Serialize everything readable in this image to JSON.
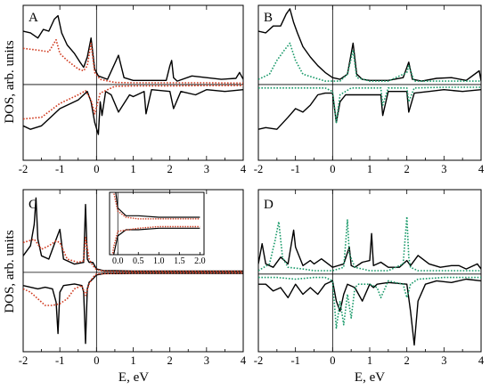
{
  "figure": {
    "ylabel": "DOS, arb. units",
    "xlabel": "E, eV"
  },
  "chart_data": [
    {
      "type": "line",
      "panel": "A",
      "xlim": [
        -2,
        4
      ],
      "xticks": [
        "-2",
        "-1",
        "0",
        "1",
        "2",
        "3",
        "4"
      ],
      "series": [
        {
          "color": "#000000",
          "style": "solid",
          "channel": "spin-up",
          "x": [
            -2.0,
            -1.8,
            -1.6,
            -1.45,
            -1.3,
            -1.15,
            -1.05,
            -0.95,
            -0.8,
            -0.6,
            -0.45,
            -0.35,
            -0.25,
            -0.15,
            -0.05,
            0.05,
            0.3,
            0.6,
            0.75,
            1.0,
            1.5,
            1.9,
            2.0,
            2.05,
            2.1,
            2.2,
            2.6,
            3.0,
            3.4,
            3.8,
            3.9,
            4.0
          ],
          "y": [
            1.55,
            1.5,
            1.35,
            1.6,
            1.55,
            1.9,
            2.0,
            1.5,
            1.15,
            0.9,
            0.65,
            0.5,
            0.8,
            1.35,
            0.45,
            0.25,
            0.15,
            0.85,
            0.2,
            0.12,
            0.12,
            0.12,
            0.55,
            0.7,
            0.2,
            0.1,
            0.25,
            0.2,
            0.15,
            0.18,
            0.35,
            0.15
          ]
        },
        {
          "color": "#d03a1f",
          "style": "dotted",
          "channel": "spin-up",
          "x": [
            -2.0,
            -1.6,
            -1.3,
            -1.1,
            -1.0,
            -0.8,
            -0.5,
            -0.35,
            -0.25,
            -0.15,
            -0.05,
            0.1,
            0.5,
            1.0,
            2.0,
            3.0,
            4.0
          ],
          "y": [
            1.05,
            1.0,
            0.95,
            1.3,
            0.9,
            0.7,
            0.45,
            0.4,
            0.55,
            1.2,
            0.35,
            0.15,
            0.06,
            0.05,
            0.05,
            0.05,
            0.04
          ]
        },
        {
          "color": "#000000",
          "style": "solid",
          "channel": "spin-down",
          "x": [
            -2.0,
            -1.8,
            -1.5,
            -1.3,
            -1.0,
            -0.8,
            -0.5,
            -0.35,
            -0.25,
            -0.15,
            -0.05,
            0.05,
            0.1,
            0.15,
            0.25,
            0.4,
            0.6,
            0.9,
            1.0,
            1.3,
            1.35,
            1.5,
            2.0,
            2.1,
            2.3,
            2.7,
            3.0,
            3.5,
            4.0
          ],
          "y": [
            -1.2,
            -1.3,
            -1.2,
            -1.0,
            -0.7,
            -0.6,
            -0.45,
            -0.3,
            -0.2,
            -0.5,
            -1.1,
            -1.45,
            -0.5,
            -0.9,
            -0.2,
            -0.3,
            -0.8,
            -0.3,
            -0.35,
            -0.2,
            -0.85,
            -0.15,
            -0.2,
            -0.7,
            -0.2,
            -0.3,
            -0.15,
            -0.2,
            -0.15
          ]
        },
        {
          "color": "#d03a1f",
          "style": "dotted",
          "channel": "spin-down",
          "x": [
            -2.0,
            -1.5,
            -1.0,
            -0.5,
            -0.3,
            -0.15,
            -0.05,
            0.1,
            0.5,
            1.0,
            2.0,
            3.0,
            4.0
          ],
          "y": [
            -1.0,
            -0.95,
            -0.55,
            -0.3,
            -0.18,
            -0.45,
            -0.85,
            -0.25,
            -0.05,
            -0.04,
            -0.04,
            -0.03,
            -0.03
          ]
        }
      ]
    },
    {
      "type": "line",
      "panel": "B",
      "xlim": [
        -2,
        4
      ],
      "xticks": [
        "-2",
        "-1",
        "0",
        "1",
        "2",
        "3",
        "4"
      ],
      "series": [
        {
          "color": "#000000",
          "style": "solid",
          "channel": "spin-up",
          "x": [
            -2.0,
            -1.8,
            -1.6,
            -1.4,
            -1.25,
            -1.15,
            -1.05,
            -0.95,
            -0.8,
            -0.6,
            -0.4,
            -0.2,
            0.0,
            0.2,
            0.4,
            0.55,
            0.65,
            0.8,
            1.0,
            1.5,
            1.9,
            2.0,
            2.05,
            2.15,
            2.4,
            2.8,
            3.2,
            3.6,
            3.95,
            4.0
          ],
          "y": [
            1.55,
            1.5,
            1.7,
            1.7,
            2.05,
            2.2,
            1.8,
            1.5,
            1.1,
            0.8,
            0.55,
            0.35,
            0.2,
            0.15,
            0.3,
            1.2,
            0.3,
            0.15,
            0.12,
            0.12,
            0.2,
            0.5,
            0.65,
            0.15,
            0.1,
            0.18,
            0.2,
            0.12,
            0.4,
            0.1
          ]
        },
        {
          "color": "#1a9a6a",
          "style": "dotted",
          "channel": "spin-up",
          "x": [
            -2.0,
            -1.7,
            -1.5,
            -1.3,
            -1.15,
            -1.0,
            -0.8,
            -0.5,
            -0.2,
            0.0,
            0.2,
            0.4,
            0.55,
            0.65,
            1.0,
            1.5,
            2.0,
            2.05,
            2.2,
            2.6,
            3.0,
            3.5,
            4.0
          ],
          "y": [
            0.15,
            0.3,
            0.7,
            1.0,
            1.2,
            0.7,
            0.3,
            0.2,
            0.1,
            0.1,
            0.1,
            0.3,
            1.0,
            0.2,
            0.1,
            0.1,
            0.35,
            0.55,
            0.1,
            0.1,
            0.1,
            0.1,
            0.1
          ]
        },
        {
          "color": "#000000",
          "style": "solid",
          "channel": "spin-down",
          "x": [
            -2.0,
            -1.8,
            -1.5,
            -1.2,
            -1.0,
            -0.8,
            -0.6,
            -0.4,
            -0.2,
            0.0,
            0.1,
            0.2,
            0.35,
            0.5,
            0.7,
            1.0,
            1.3,
            1.35,
            1.5,
            2.0,
            2.05,
            2.2,
            2.6,
            3.0,
            3.5,
            4.0
          ],
          "y": [
            -1.3,
            -1.25,
            -1.3,
            -0.95,
            -0.7,
            -0.8,
            -0.6,
            -0.3,
            -0.25,
            -0.25,
            -1.1,
            -0.5,
            -0.3,
            -0.3,
            -0.3,
            -0.3,
            -0.3,
            -0.9,
            -0.2,
            -0.2,
            -0.8,
            -0.25,
            -0.2,
            -0.15,
            -0.2,
            -0.15
          ]
        },
        {
          "color": "#1a9a6a",
          "style": "dotted",
          "channel": "spin-down",
          "x": [
            -2.0,
            -1.5,
            -1.0,
            -0.5,
            -0.2,
            0.0,
            0.1,
            0.2,
            0.5,
            1.0,
            1.3,
            1.35,
            1.5,
            2.0,
            2.05,
            2.2,
            3.0,
            4.0
          ],
          "y": [
            -0.1,
            -0.1,
            -0.1,
            -0.1,
            -0.1,
            -0.2,
            -1.1,
            -0.3,
            -0.1,
            -0.1,
            -0.1,
            -0.6,
            -0.1,
            -0.1,
            -0.5,
            -0.1,
            -0.08,
            -0.08
          ]
        }
      ]
    },
    {
      "type": "line",
      "panel": "C",
      "xlim": [
        -2,
        4
      ],
      "xticks": [
        "-2",
        "-1",
        "0",
        "1",
        "2",
        "3",
        "4"
      ],
      "inset": {
        "xticks": [
          "0.0",
          "0.5",
          "1.0",
          "1.5",
          "2.0"
        ],
        "xlim": [
          -0.2,
          2.1
        ]
      },
      "series": [
        {
          "color": "#000000",
          "style": "solid",
          "channel": "spin-up",
          "x": [
            -2.0,
            -1.8,
            -1.7,
            -1.65,
            -1.6,
            -1.5,
            -1.3,
            -1.1,
            -1.0,
            -0.9,
            -0.6,
            -0.35,
            -0.3,
            -0.25,
            -0.2,
            -0.1,
            0.0,
            0.2,
            0.5,
            1.0,
            2.0,
            3.0,
            4.0
          ],
          "y": [
            0.5,
            0.8,
            1.45,
            2.25,
            1.0,
            0.5,
            0.4,
            1.0,
            1.3,
            0.4,
            0.25,
            0.3,
            2.05,
            0.4,
            0.3,
            0.3,
            0.1,
            0.05,
            0.05,
            0.04,
            0.04,
            0.04,
            0.04
          ]
        },
        {
          "color": "#d03a1f",
          "style": "dotted",
          "channel": "spin-up",
          "x": [
            -2.0,
            -1.7,
            -1.5,
            -1.3,
            -1.1,
            -1.0,
            -0.8,
            -0.5,
            -0.35,
            -0.3,
            -0.2,
            -0.1,
            0.0,
            0.2,
            0.5,
            1.0,
            2.0,
            3.0,
            4.0
          ],
          "y": [
            0.9,
            1.0,
            0.7,
            0.8,
            0.95,
            0.9,
            0.4,
            0.3,
            0.35,
            1.05,
            0.4,
            0.2,
            0.08,
            0.04,
            0.03,
            0.03,
            0.03,
            0.03,
            0.03
          ]
        },
        {
          "color": "#000000",
          "style": "solid",
          "channel": "spin-down",
          "x": [
            -2.0,
            -1.8,
            -1.6,
            -1.4,
            -1.2,
            -1.1,
            -1.05,
            -1.0,
            -0.9,
            -0.6,
            -0.4,
            -0.35,
            -0.3,
            -0.25,
            -0.2,
            -0.1,
            0.0,
            0.2,
            0.5,
            1.0,
            2.0,
            3.0,
            4.0
          ],
          "y": [
            -0.4,
            -0.45,
            -0.5,
            -0.45,
            -0.5,
            -0.9,
            -1.85,
            -0.6,
            -0.4,
            -0.35,
            -0.4,
            -0.6,
            -2.15,
            -0.5,
            -0.3,
            -0.2,
            -0.08,
            -0.04,
            -0.04,
            -0.03,
            -0.03,
            -0.03,
            -0.03
          ]
        },
        {
          "color": "#d03a1f",
          "style": "dotted",
          "channel": "spin-down",
          "x": [
            -2.0,
            -1.8,
            -1.6,
            -1.4,
            -1.2,
            -1.0,
            -0.8,
            -0.6,
            -0.4,
            -0.3,
            -0.2,
            -0.1,
            0.0,
            0.5,
            1.0,
            2.0,
            4.0
          ],
          "y": [
            -0.5,
            -0.6,
            -0.8,
            -1.0,
            -1.0,
            -0.95,
            -0.8,
            -0.5,
            -0.4,
            -0.7,
            -0.35,
            -0.15,
            -0.05,
            -0.03,
            -0.02,
            -0.02,
            -0.02
          ]
        }
      ]
    },
    {
      "type": "line",
      "panel": "D",
      "xlim": [
        -2,
        4
      ],
      "xticks": [
        "-2",
        "-1",
        "0",
        "1",
        "2",
        "3",
        "4"
      ],
      "series": [
        {
          "color": "#000000",
          "style": "solid",
          "channel": "spin-up",
          "x": [
            -2.0,
            -1.9,
            -1.8,
            -1.6,
            -1.4,
            -1.2,
            -1.05,
            -1.0,
            -0.8,
            -0.6,
            -0.5,
            -0.3,
            0.0,
            0.3,
            0.45,
            0.5,
            0.6,
            0.8,
            1.0,
            1.05,
            1.1,
            1.3,
            1.5,
            1.8,
            2.0,
            2.1,
            2.3,
            2.6,
            2.9,
            3.2,
            3.4,
            3.6,
            3.9,
            4.0
          ],
          "y": [
            0.3,
            0.9,
            0.3,
            0.2,
            0.5,
            0.3,
            1.3,
            0.8,
            0.25,
            0.4,
            0.3,
            0.45,
            0.2,
            0.3,
            0.8,
            0.25,
            0.2,
            0.35,
            0.4,
            1.2,
            0.25,
            0.35,
            0.2,
            0.2,
            0.4,
            0.25,
            0.55,
            0.3,
            0.2,
            0.25,
            0.25,
            0.15,
            0.3,
            0.15
          ]
        },
        {
          "color": "#1a9a6a",
          "style": "dotted",
          "channel": "spin-up",
          "x": [
            -2.0,
            -1.7,
            -1.55,
            -1.45,
            -1.35,
            -1.2,
            -0.8,
            -0.5,
            -0.3,
            0.0,
            0.3,
            0.4,
            0.45,
            0.6,
            0.8,
            1.0,
            1.5,
            1.9,
            2.0,
            2.05,
            2.1,
            2.3,
            2.7,
            3.0,
            3.5,
            4.0
          ],
          "y": [
            0.1,
            0.3,
            1.0,
            1.55,
            0.5,
            0.2,
            0.15,
            0.1,
            0.1,
            0.1,
            0.2,
            1.6,
            0.6,
            0.2,
            0.15,
            0.1,
            0.1,
            0.3,
            1.7,
            0.5,
            0.2,
            0.1,
            0.1,
            0.1,
            0.1,
            0.1
          ]
        },
        {
          "color": "#000000",
          "style": "solid",
          "channel": "spin-down",
          "x": [
            -2.0,
            -1.8,
            -1.6,
            -1.4,
            -1.2,
            -1.0,
            -0.8,
            -0.6,
            -0.4,
            -0.2,
            0.0,
            0.1,
            0.2,
            0.3,
            0.4,
            0.6,
            0.8,
            1.0,
            1.1,
            1.2,
            1.5,
            2.0,
            2.1,
            2.2,
            2.3,
            2.5,
            2.8,
            3.2,
            3.6,
            4.0
          ],
          "y": [
            -0.3,
            -0.3,
            -0.5,
            -0.4,
            -0.7,
            -0.3,
            -0.6,
            -0.4,
            -0.6,
            -0.3,
            -0.2,
            -0.8,
            -1.1,
            -0.6,
            -0.3,
            -0.4,
            -0.8,
            -0.3,
            -0.4,
            -0.3,
            -0.25,
            -0.3,
            -1.1,
            -2.1,
            -0.8,
            -0.3,
            -0.2,
            -0.25,
            -0.15,
            -0.2
          ]
        },
        {
          "color": "#1a9a6a",
          "style": "dotted",
          "channel": "spin-down",
          "x": [
            -2.0,
            -1.5,
            -1.0,
            -0.5,
            -0.2,
            0.0,
            0.1,
            0.2,
            0.3,
            0.4,
            0.5,
            0.6,
            0.7,
            1.0,
            1.2,
            1.3,
            1.5,
            1.9,
            2.0,
            2.1,
            2.3,
            3.0,
            4.0
          ],
          "y": [
            -0.1,
            -0.1,
            -0.15,
            -0.1,
            -0.1,
            -0.2,
            -1.6,
            -0.8,
            -1.5,
            -0.6,
            -1.3,
            -0.4,
            -0.3,
            -0.3,
            -0.4,
            -0.7,
            -0.2,
            -0.3,
            -0.7,
            -0.3,
            -0.15,
            -0.1,
            -0.1
          ]
        }
      ]
    }
  ]
}
